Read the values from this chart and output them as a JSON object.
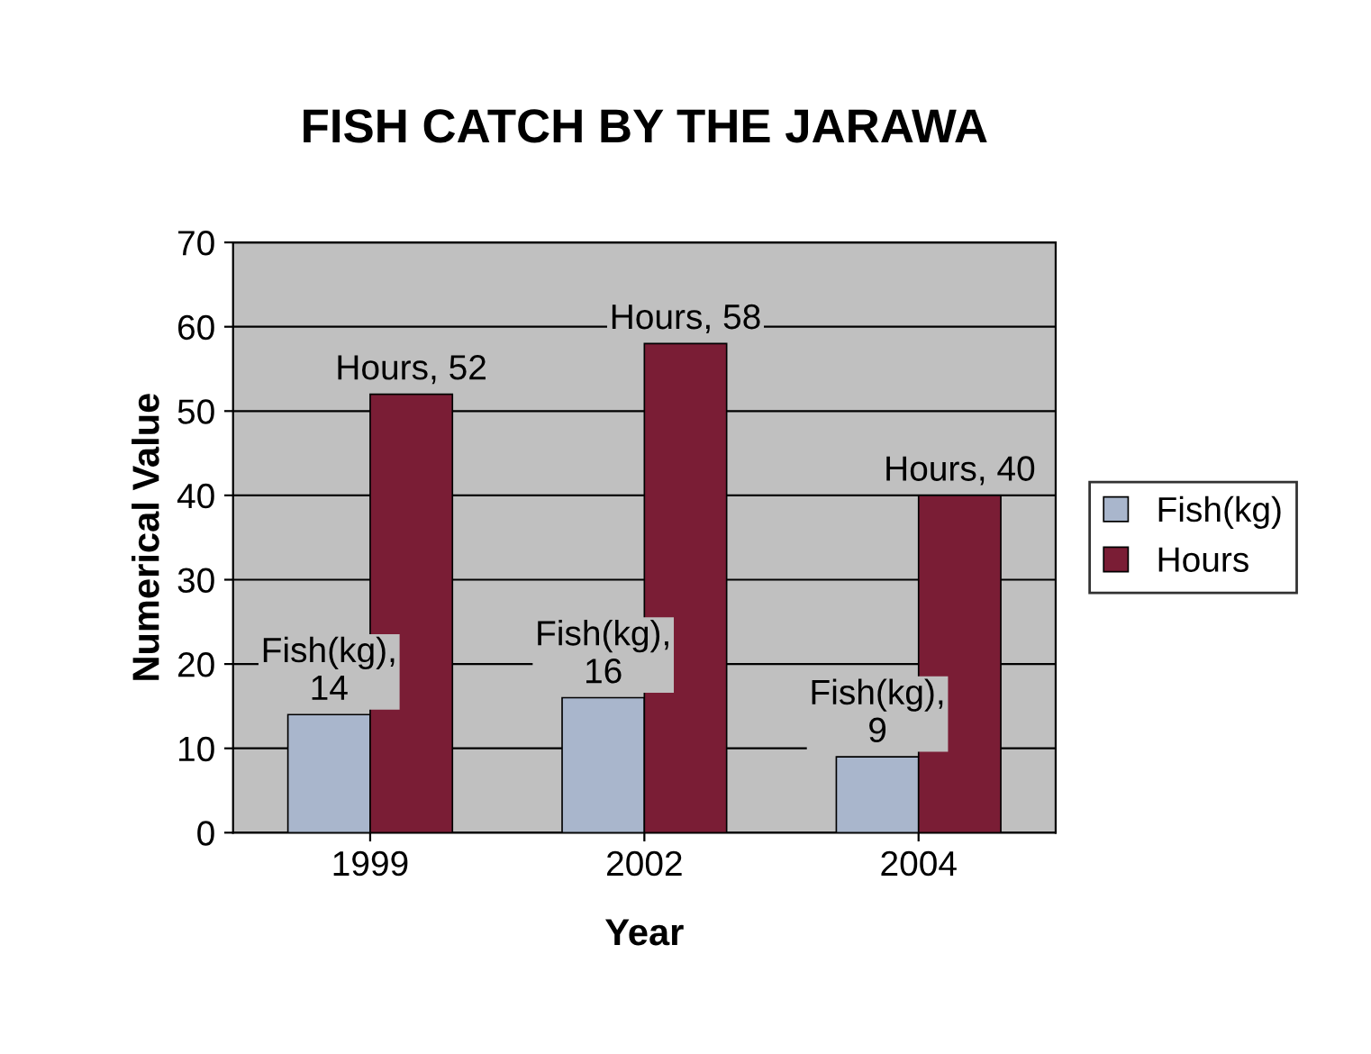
{
  "chart_data": {
    "type": "bar",
    "title": "FISH CATCH BY THE JARAWA",
    "xlabel": "Year",
    "ylabel": "Numerical Value",
    "categories": [
      "1999",
      "2002",
      "2004"
    ],
    "series": [
      {
        "name": "Fish(kg)",
        "color": "#a9b6cc",
        "values": [
          14,
          16,
          9
        ],
        "value_labels": [
          "Fish(kg),\n14",
          "Fish(kg),\n16",
          "Fish(kg),\n9"
        ]
      },
      {
        "name": "Hours",
        "color": "#7a1d35",
        "values": [
          52,
          58,
          40
        ],
        "value_labels": [
          "Hours, 52",
          "Hours, 58",
          "Hours, 40"
        ]
      }
    ],
    "ylim": [
      0,
      70
    ],
    "yticks": [
      0,
      10,
      20,
      30,
      40,
      50,
      60,
      70
    ],
    "grid": "y",
    "legend": "right"
  }
}
